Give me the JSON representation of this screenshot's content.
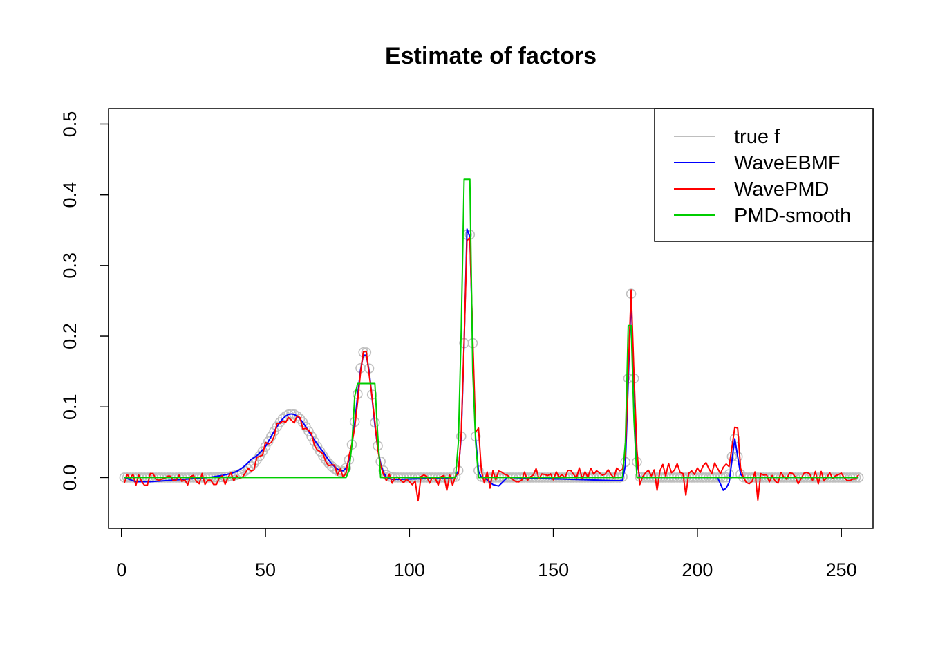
{
  "chart_data": {
    "type": "line",
    "title": "Estimate of factors",
    "xlabel": "",
    "ylabel": "",
    "xlim": [
      -4.5,
      261
    ],
    "ylim": [
      -0.072,
      0.522
    ],
    "x_ticks": [
      0,
      50,
      100,
      150,
      200,
      250
    ],
    "x_tick_labels": [
      "0",
      "50",
      "100",
      "150",
      "200",
      "250"
    ],
    "y_ticks": [
      0.0,
      0.1,
      0.2,
      0.3,
      0.4,
      0.5
    ],
    "y_tick_labels": [
      "0.0",
      "0.1",
      "0.2",
      "0.3",
      "0.4",
      "0.5"
    ],
    "grid": false,
    "legend_position": "top-right",
    "x": {
      "start": 1,
      "end": 256,
      "step": 1
    },
    "series": [
      {
        "name": "true f",
        "color": "#bebebe",
        "style": "line-and-circles",
        "components": [
          {
            "kind": "gaussian",
            "center": 59,
            "height": 0.09,
            "width": 7.5
          },
          {
            "kind": "gaussian",
            "center": 84.5,
            "height": 0.18,
            "width": 2.7
          },
          {
            "kind": "gaussian",
            "center": 120.5,
            "height": 0.37,
            "width": 1.3
          },
          {
            "kind": "gaussian",
            "center": 177,
            "height": 0.26,
            "width": 0.9
          },
          {
            "kind": "gaussian",
            "center": 213,
            "height": 0.055,
            "width": 0.9
          }
        ]
      },
      {
        "name": "WaveEBMF",
        "color": "#0000ff",
        "style": "line",
        "base": "true f",
        "offsets": [
          [
            1,
            0
          ],
          [
            5,
            -0.006
          ],
          [
            10,
            -0.006
          ],
          [
            20,
            -0.003
          ],
          [
            30,
            0.0
          ],
          [
            40,
            0.005
          ],
          [
            45,
            0.01
          ],
          [
            50,
            0.0
          ],
          [
            65,
            0.0
          ],
          [
            70,
            0.006
          ],
          [
            78,
            0.0
          ],
          [
            84,
            -0.004
          ],
          [
            119,
            0.0
          ],
          [
            120,
            0.008
          ],
          [
            121,
            -0.003
          ],
          [
            126,
            0.0
          ],
          [
            129,
            -0.01
          ],
          [
            131,
            -0.012
          ],
          [
            134,
            0.0
          ],
          [
            177,
            -0.005
          ],
          [
            180,
            0.0
          ],
          [
            207,
            0.0
          ],
          [
            209,
            -0.018
          ],
          [
            211,
            -0.012
          ],
          [
            213,
            0.0
          ],
          [
            256,
            0.0
          ]
        ]
      },
      {
        "name": "WavePMD",
        "color": "#ff0000",
        "style": "line",
        "base": "true f",
        "noise_amplitude": 0.009,
        "noise_seed": 7,
        "offsets": [
          [
            120,
            -0.003
          ],
          [
            121,
            0.0
          ],
          [
            213,
            0.015
          ],
          [
            214,
            0.0
          ]
        ],
        "spikes": [
          [
            103,
            -0.033
          ],
          [
            221,
            -0.032
          ],
          [
            113,
            -0.018
          ],
          [
            128,
            -0.015
          ],
          [
            186,
            -0.018
          ],
          [
            196,
            -0.025
          ],
          [
            180,
            -0.01
          ],
          [
            214,
            0.07
          ],
          [
            216,
            0.0
          ],
          [
            124,
            0.07
          ],
          [
            84,
            0.178
          ]
        ]
      },
      {
        "name": "PMD-smooth",
        "color": "#00cd00",
        "style": "line",
        "points": [
          [
            1,
            0
          ],
          [
            78,
            0
          ],
          [
            79,
            0.01
          ],
          [
            80,
            0.045
          ],
          [
            81,
            0.115
          ],
          [
            82,
            0.133
          ],
          [
            88,
            0.133
          ],
          [
            89,
            0.06
          ],
          [
            90,
            0
          ],
          [
            116,
            0
          ],
          [
            117,
            0.05
          ],
          [
            118,
            0.21
          ],
          [
            119,
            0.422
          ],
          [
            121,
            0.422
          ],
          [
            122,
            0.15
          ],
          [
            123,
            0.05
          ],
          [
            124,
            0
          ],
          [
            174,
            0
          ],
          [
            175,
            0.05
          ],
          [
            176,
            0.215
          ],
          [
            177,
            0.215
          ],
          [
            178,
            0.08
          ],
          [
            179,
            0
          ],
          [
            256,
            0
          ]
        ]
      }
    ]
  }
}
